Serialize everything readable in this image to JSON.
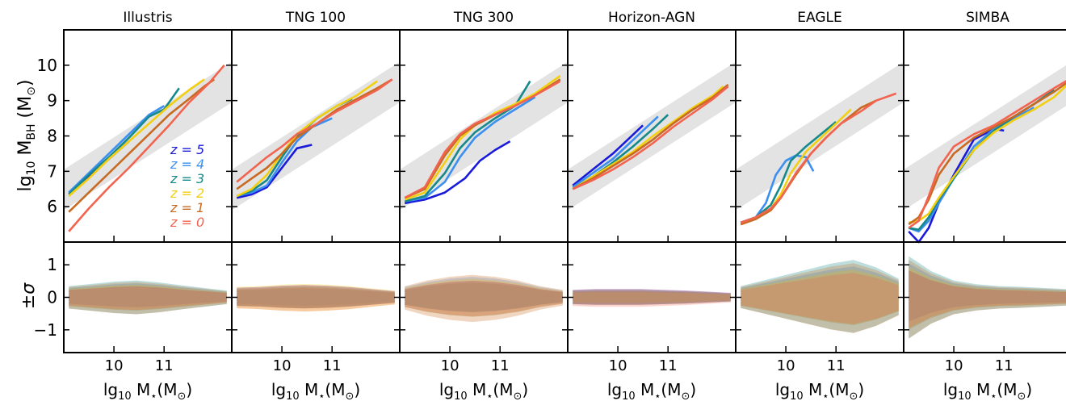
{
  "figure": {
    "ylabel_top": "lg10 MBH (M⊙)",
    "ylabel_bottom": "±σ",
    "xlabel": "lg10 M⋆(M⊙)",
    "top_yticks": [
      "6",
      "7",
      "8",
      "9",
      "10"
    ],
    "bottom_yticks": [
      "1",
      "0",
      "−1"
    ],
    "xticks": [
      "10",
      "11"
    ]
  },
  "legend": {
    "placement": "inside first panel, lower-right",
    "entries": [
      {
        "label": "z = 5",
        "color": "#1a1adb"
      },
      {
        "label": "z = 4",
        "color": "#3a8ff0"
      },
      {
        "label": "z = 3",
        "color": "#16898a"
      },
      {
        "label": "z = 2",
        "color": "#f2cf10"
      },
      {
        "label": "z = 1",
        "color": "#c86a22"
      },
      {
        "label": "z = 0",
        "color": "#f26450"
      }
    ]
  },
  "chart_data": {
    "type": "line",
    "xlim": [
      9.0,
      12.35
    ],
    "ylim_top": [
      5.0,
      11.0
    ],
    "ylim_bottom": [
      -1.7,
      1.7
    ],
    "grey_band": {
      "x": [
        9.0,
        12.35
      ],
      "lower": [
        5.9,
        8.95
      ],
      "upper": [
        7.05,
        10.1
      ]
    },
    "panels": [
      {
        "title": "Illustris",
        "series": [
          {
            "name": "z = 5",
            "x": [
              9.1,
              9.5,
              9.9,
              10.3
            ],
            "y": [
              6.35,
              6.85,
              7.35,
              7.85
            ]
          },
          {
            "name": "z = 4",
            "x": [
              9.1,
              9.5,
              9.9,
              10.3,
              10.7,
              11.0
            ],
            "y": [
              6.4,
              6.95,
              7.5,
              8.05,
              8.6,
              8.85
            ]
          },
          {
            "name": "z = 3",
            "x": [
              9.1,
              9.5,
              9.9,
              10.3,
              10.7,
              11.0,
              11.3
            ],
            "y": [
              6.35,
              6.9,
              7.4,
              7.95,
              8.55,
              8.75,
              9.35
            ]
          },
          {
            "name": "z = 2",
            "x": [
              9.1,
              9.5,
              9.9,
              10.3,
              10.7,
              11.1,
              11.5,
              11.8
            ],
            "y": [
              6.3,
              6.8,
              7.35,
              7.85,
              8.35,
              8.85,
              9.3,
              9.6
            ]
          },
          {
            "name": "z = 1",
            "x": [
              9.1,
              9.5,
              9.9,
              10.3,
              10.7,
              11.1,
              11.5,
              11.8,
              12.0
            ],
            "y": [
              5.85,
              6.4,
              6.95,
              7.5,
              8.05,
              8.6,
              9.05,
              9.4,
              9.6
            ]
          },
          {
            "name": "z = 0",
            "x": [
              9.1,
              9.5,
              9.9,
              10.3,
              10.7,
              11.1,
              11.5,
              11.9,
              12.2
            ],
            "y": [
              5.3,
              5.95,
              6.55,
              7.1,
              7.7,
              8.3,
              8.95,
              9.5,
              10.0
            ]
          }
        ],
        "sigma_halfwidth": [
          0.3,
          0.36,
          0.42,
          0.45,
          0.4,
          0.32,
          0.25,
          0.18
        ]
      },
      {
        "title": "TNG 100",
        "series": [
          {
            "name": "z = 5",
            "x": [
              9.1,
              9.4,
              9.7,
              10.0,
              10.3,
              10.6
            ],
            "y": [
              6.25,
              6.35,
              6.55,
              7.1,
              7.65,
              7.75
            ]
          },
          {
            "name": "z = 4",
            "x": [
              9.1,
              9.4,
              9.7,
              10.0,
              10.3,
              10.6,
              11.0
            ],
            "y": [
              6.3,
              6.4,
              6.6,
              7.25,
              7.85,
              8.25,
              8.5
            ]
          },
          {
            "name": "z = 3",
            "x": [
              9.1,
              9.4,
              9.7,
              10.0,
              10.3,
              10.7,
              11.1,
              11.4
            ],
            "y": [
              6.3,
              6.45,
              6.75,
              7.4,
              8.0,
              8.5,
              8.85,
              9.05
            ]
          },
          {
            "name": "z = 2",
            "x": [
              9.1,
              9.4,
              9.7,
              10.0,
              10.3,
              10.7,
              11.1,
              11.5,
              11.9
            ],
            "y": [
              6.3,
              6.5,
              6.9,
              7.5,
              8.05,
              8.5,
              8.85,
              9.15,
              9.55
            ]
          },
          {
            "name": "z = 1",
            "x": [
              9.1,
              9.4,
              9.7,
              10.0,
              10.3,
              10.7,
              11.1,
              11.5,
              11.9,
              12.2
            ],
            "y": [
              6.5,
              6.8,
              7.1,
              7.5,
              7.95,
              8.35,
              8.75,
              9.05,
              9.35,
              9.6
            ]
          },
          {
            "name": "z = 0",
            "x": [
              9.1,
              9.4,
              9.7,
              10.0,
              10.3,
              10.7,
              11.1,
              11.5,
              11.9,
              12.2
            ],
            "y": [
              6.7,
              7.05,
              7.4,
              7.7,
              8.05,
              8.35,
              8.7,
              9.0,
              9.3,
              9.6
            ]
          }
        ],
        "sigma_halfwidth": [
          0.28,
          0.3,
          0.34,
          0.36,
          0.34,
          0.3,
          0.24,
          0.18
        ]
      },
      {
        "title": "TNG 300",
        "series": [
          {
            "name": "z = 5",
            "x": [
              9.1,
              9.5,
              9.9,
              10.3,
              10.6,
              10.9,
              11.2
            ],
            "y": [
              6.1,
              6.2,
              6.4,
              6.8,
              7.3,
              7.6,
              7.85
            ]
          },
          {
            "name": "z = 4",
            "x": [
              9.1,
              9.5,
              9.9,
              10.2,
              10.5,
              10.9,
              11.3,
              11.7
            ],
            "y": [
              6.15,
              6.25,
              6.7,
              7.4,
              7.95,
              8.4,
              8.75,
              9.1
            ]
          },
          {
            "name": "z = 3",
            "x": [
              9.1,
              9.5,
              9.9,
              10.2,
              10.5,
              10.9,
              11.3,
              11.6
            ],
            "y": [
              6.15,
              6.3,
              6.95,
              7.65,
              8.1,
              8.5,
              8.85,
              9.55
            ]
          },
          {
            "name": "z = 2",
            "x": [
              9.1,
              9.5,
              9.9,
              10.2,
              10.5,
              10.9,
              11.3,
              11.7,
              12.2
            ],
            "y": [
              6.2,
              6.4,
              7.25,
              7.9,
              8.3,
              8.65,
              8.9,
              9.2,
              9.7
            ]
          },
          {
            "name": "z = 1",
            "x": [
              9.1,
              9.5,
              9.9,
              10.2,
              10.5,
              10.9,
              11.3,
              11.7,
              12.2
            ],
            "y": [
              6.25,
              6.5,
              7.45,
              8.0,
              8.3,
              8.6,
              8.85,
              9.15,
              9.6
            ]
          },
          {
            "name": "z = 0",
            "x": [
              9.1,
              9.5,
              9.9,
              10.2,
              10.5,
              10.9,
              11.3,
              11.7,
              12.2
            ],
            "y": [
              6.25,
              6.55,
              7.55,
              8.05,
              8.35,
              8.6,
              8.85,
              9.15,
              9.55
            ]
          }
        ],
        "sigma_halfwidth": [
          0.3,
          0.45,
          0.55,
          0.6,
          0.55,
          0.45,
          0.3,
          0.2
        ]
      },
      {
        "title": "Horizon-AGN",
        "series": [
          {
            "name": "z = 5",
            "x": [
              9.1,
              9.5,
              9.9,
              10.2,
              10.5
            ],
            "y": [
              6.6,
              7.05,
              7.5,
              7.9,
              8.3
            ]
          },
          {
            "name": "z = 4",
            "x": [
              9.1,
              9.5,
              9.9,
              10.2,
              10.5,
              10.8
            ],
            "y": [
              6.55,
              6.95,
              7.35,
              7.75,
              8.15,
              8.55
            ]
          },
          {
            "name": "z = 3",
            "x": [
              9.1,
              9.5,
              9.9,
              10.3,
              10.7,
              11.0
            ],
            "y": [
              6.5,
              6.85,
              7.25,
              7.7,
              8.2,
              8.6
            ]
          },
          {
            "name": "z = 2",
            "x": [
              9.1,
              9.5,
              9.9,
              10.3,
              10.7,
              11.1,
              11.5,
              11.9,
              12.1
            ],
            "y": [
              6.5,
              6.85,
              7.2,
              7.55,
              8.0,
              8.4,
              8.8,
              9.15,
              9.4
            ]
          },
          {
            "name": "z = 1",
            "x": [
              9.1,
              9.5,
              9.9,
              10.3,
              10.7,
              11.1,
              11.5,
              11.9,
              12.2
            ],
            "y": [
              6.5,
              6.8,
              7.15,
              7.5,
              7.9,
              8.35,
              8.75,
              9.1,
              9.45
            ]
          },
          {
            "name": "z = 0",
            "x": [
              9.1,
              9.5,
              9.9,
              10.3,
              10.7,
              11.1,
              11.5,
              11.9,
              12.2
            ],
            "y": [
              6.5,
              6.75,
              7.05,
              7.4,
              7.8,
              8.25,
              8.65,
              9.05,
              9.4
            ]
          }
        ],
        "sigma_halfwidth": [
          0.2,
          0.22,
          0.22,
          0.22,
          0.2,
          0.18,
          0.15,
          0.12
        ]
      },
      {
        "title": "EAGLE",
        "series": [
          {
            "name": "z = 4",
            "x": [
              9.1,
              9.4,
              9.6,
              9.8,
              10.0,
              10.2,
              10.4,
              10.55
            ],
            "y": [
              5.55,
              5.7,
              6.1,
              6.9,
              7.3,
              7.45,
              7.4,
              7.0
            ]
          },
          {
            "name": "z = 3",
            "x": [
              9.1,
              9.4,
              9.7,
              9.9,
              10.1,
              10.4,
              10.7,
              11.0
            ],
            "y": [
              5.55,
              5.7,
              6.05,
              6.6,
              7.3,
              7.7,
              8.05,
              8.4
            ]
          },
          {
            "name": "z = 2",
            "x": [
              9.1,
              9.4,
              9.7,
              9.9,
              10.1,
              10.4,
              10.7,
              11.0,
              11.3
            ],
            "y": [
              5.55,
              5.65,
              5.95,
              6.35,
              6.95,
              7.55,
              7.95,
              8.35,
              8.75
            ]
          },
          {
            "name": "z = 1",
            "x": [
              9.1,
              9.4,
              9.7,
              9.9,
              10.2,
              10.5,
              10.8,
              11.1,
              11.5,
              11.8
            ],
            "y": [
              5.5,
              5.65,
              5.9,
              6.25,
              6.9,
              7.5,
              7.95,
              8.35,
              8.8,
              9.0
            ]
          },
          {
            "name": "z = 0",
            "x": [
              9.1,
              9.4,
              9.7,
              9.9,
              10.2,
              10.5,
              10.8,
              11.1,
              11.5,
              11.8,
              12.2
            ],
            "y": [
              5.55,
              5.7,
              5.95,
              6.25,
              6.95,
              7.5,
              7.95,
              8.35,
              8.7,
              9.0,
              9.2
            ]
          }
        ],
        "sigma_halfwidth": [
          0.3,
          0.45,
          0.6,
          0.75,
          0.9,
          1.0,
          0.8,
          0.5
        ]
      },
      {
        "title": "SIMBA",
        "series": [
          {
            "name": "z = 5",
            "x": [
              9.1,
              9.3,
              9.5,
              9.7,
              10.0,
              10.4,
              10.8,
              11.0
            ],
            "y": [
              5.3,
              5.0,
              5.4,
              6.1,
              6.9,
              7.9,
              8.2,
              8.15
            ]
          },
          {
            "name": "z = 4",
            "x": [
              9.1,
              9.3,
              9.5,
              9.7,
              10.0,
              10.4,
              10.8,
              11.2,
              11.6
            ],
            "y": [
              5.4,
              5.3,
              5.6,
              6.1,
              6.8,
              7.7,
              8.2,
              8.5,
              8.8
            ]
          },
          {
            "name": "z = 3",
            "x": [
              9.1,
              9.3,
              9.5,
              9.7,
              10.0,
              10.4,
              10.8,
              11.2,
              11.6,
              12.0
            ],
            "y": [
              5.4,
              5.35,
              5.7,
              6.2,
              6.8,
              7.6,
              8.15,
              8.55,
              8.9,
              9.3
            ]
          },
          {
            "name": "z = 2",
            "x": [
              9.1,
              9.3,
              9.5,
              9.7,
              10.0,
              10.4,
              10.8,
              11.2,
              11.6,
              12.0,
              12.3
            ],
            "y": [
              5.55,
              5.6,
              5.8,
              6.25,
              6.85,
              7.6,
              8.1,
              8.45,
              8.75,
              9.1,
              9.5
            ]
          },
          {
            "name": "z = 1",
            "x": [
              9.1,
              9.3,
              9.5,
              9.7,
              10.0,
              10.4,
              10.8,
              11.2,
              11.6,
              12.0,
              12.3
            ],
            "y": [
              5.5,
              5.7,
              6.2,
              6.9,
              7.5,
              7.95,
              8.25,
              8.55,
              8.9,
              9.25,
              9.55
            ]
          },
          {
            "name": "z = 0",
            "x": [
              9.1,
              9.3,
              9.5,
              9.7,
              10.0,
              10.4,
              10.8,
              11.2,
              11.6,
              12.0,
              12.3
            ],
            "y": [
              5.4,
              5.6,
              6.3,
              7.1,
              7.7,
              8.05,
              8.3,
              8.65,
              9.0,
              9.35,
              9.6
            ]
          }
        ],
        "sigma_halfwidth": [
          1.1,
          0.7,
          0.45,
          0.35,
          0.3,
          0.28,
          0.25,
          0.22
        ]
      }
    ]
  }
}
